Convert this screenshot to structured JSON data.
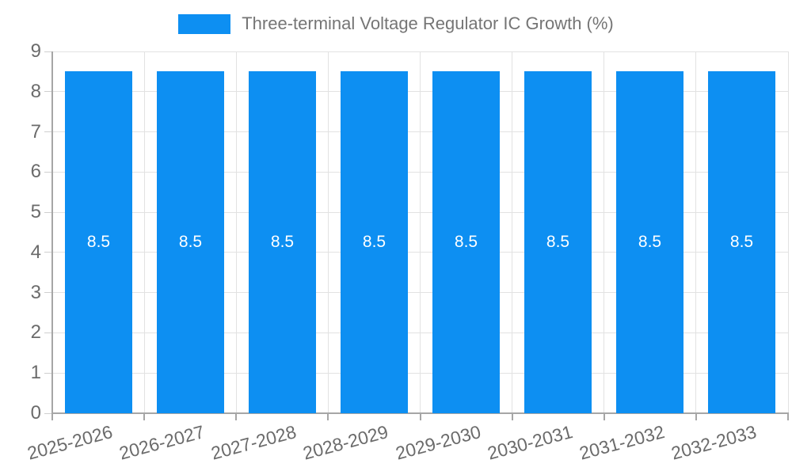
{
  "chart_data": {
    "type": "bar",
    "title": "Three-terminal Voltage Regulator IC Growth (%)",
    "categories": [
      "2025-2026",
      "2026-2027",
      "2027-2028",
      "2028-2029",
      "2029-2030",
      "2030-2031",
      "2031-2032",
      "2032-2033"
    ],
    "values": [
      8.5,
      8.5,
      8.5,
      8.5,
      8.5,
      8.5,
      8.5,
      8.5
    ],
    "xlabel": "",
    "ylabel": "",
    "ylim": [
      0,
      9
    ],
    "yticks": [
      0,
      1,
      2,
      3,
      4,
      5,
      6,
      7,
      8,
      9
    ],
    "grid": true,
    "legend_position": "top-center",
    "x_tick_rotation_deg": -15,
    "colors": {
      "bar": "#0D8FF2",
      "bar_label": "#FFFFFF",
      "gridline": "#E2E2E2",
      "axis_line": "#A6A6A6",
      "y_tick": "#CFCFCF",
      "tick_label": "#6B6B6B",
      "legend_text": "#757575",
      "background": "#FFFFFF"
    }
  }
}
